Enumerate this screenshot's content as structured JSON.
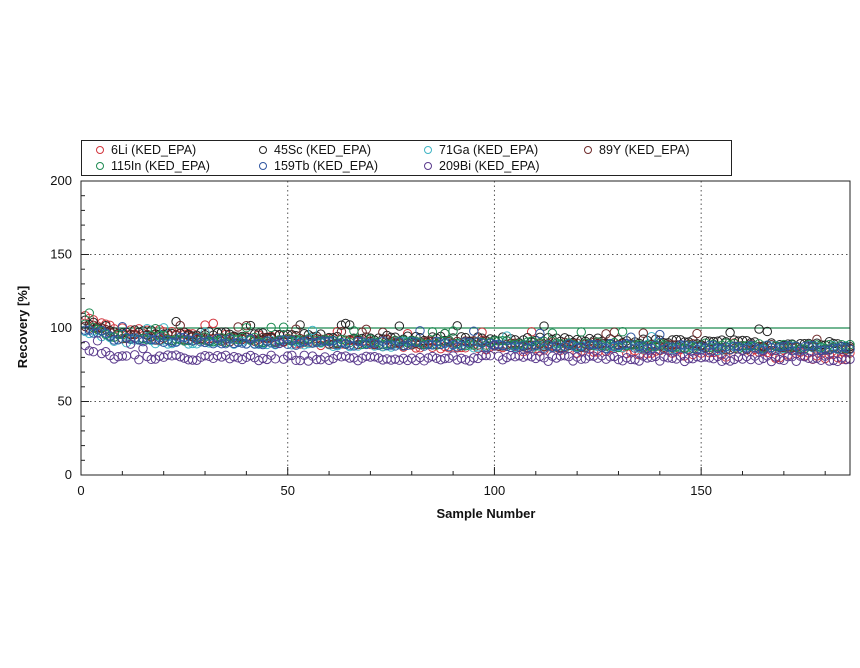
{
  "chart_data": {
    "type": "scatter",
    "title": "",
    "xlabel": "Sample Number",
    "ylabel": "Recovery [%]",
    "xlim": [
      0,
      186
    ],
    "ylim": [
      0,
      200
    ],
    "x_ticks": [
      "0",
      "50",
      "100",
      "150"
    ],
    "y_ticks": [
      "0",
      "50",
      "100",
      "150",
      "200"
    ],
    "grid": "dotted at major ticks",
    "reference_line": 100,
    "legend_position": "top",
    "series": [
      {
        "name": "6Li (KED_EPA)",
        "color": "#d2343c",
        "level_start": 101,
        "level_end": 81,
        "noise": 3
      },
      {
        "name": "45Sc (KED_EPA)",
        "color": "#222222",
        "level_start": 99,
        "level_end": 89,
        "noise": 2
      },
      {
        "name": "71Ga (KED_EPA)",
        "color": "#3fb4c4",
        "level_start": 93,
        "level_end": 86,
        "noise": 2
      },
      {
        "name": "89Y (KED_EPA)",
        "color": "#6e2a2a",
        "level_start": 96,
        "level_end": 86,
        "noise": 2
      },
      {
        "name": "115In (KED_EPA)",
        "color": "#1e8a52",
        "level_start": 95,
        "level_end": 87,
        "noise": 2
      },
      {
        "name": "159Tb (KED_EPA)",
        "color": "#2f55a0",
        "level_start": 94,
        "level_end": 86,
        "noise": 2
      },
      {
        "name": "209Bi (KED_EPA)",
        "color": "#5a3a8c",
        "level_start": 80,
        "level_end": 79,
        "noise": 2
      }
    ],
    "n_samples": 186
  }
}
